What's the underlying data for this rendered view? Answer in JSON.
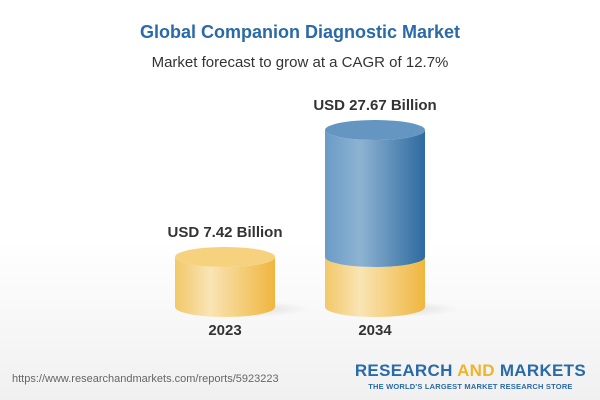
{
  "title": "Global Companion Diagnostic Market",
  "subtitle": "Market forecast to grow at a CAGR of 12.7%",
  "chart_data": {
    "type": "bar",
    "style": "3d-cylinder",
    "categories": [
      "2023",
      "2034"
    ],
    "values": [
      7.42,
      27.67
    ],
    "unit": "USD Billion",
    "data_labels": [
      "USD 7.42 Billion",
      "USD 27.67 Billion"
    ],
    "colors": {
      "base": "#f2c24e",
      "growth": "#4a84b8"
    },
    "grid": false
  },
  "footer": {
    "url": "https://www.researchandmarkets.com/reports/5923223",
    "logo_word1": "RESEARCH",
    "logo_word2": "AND",
    "logo_word3": "MARKETS",
    "tagline": "THE WORLD'S LARGEST MARKET RESEARCH STORE"
  }
}
